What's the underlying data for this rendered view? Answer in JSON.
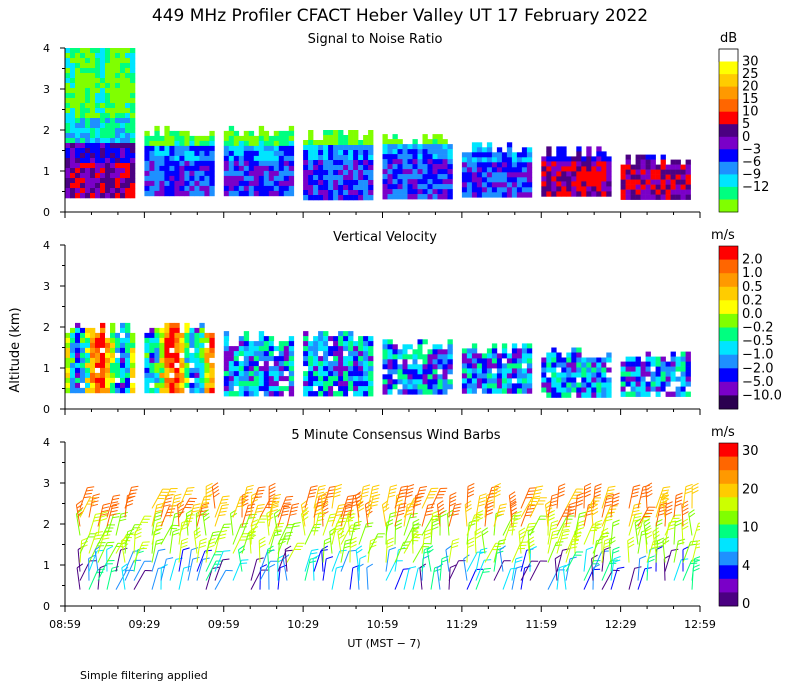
{
  "suptitle": "449 MHz Profiler CFACT Heber Valley UT 17 February 2022",
  "ylabel": "Altitude (km)",
  "xlabel": "UT  (MST − 7)",
  "xticks": [
    "08:59",
    "09:29",
    "09:59",
    "10:29",
    "10:59",
    "11:29",
    "11:59",
    "12:29",
    "12:59"
  ],
  "yticks": [
    "0",
    "1",
    "2",
    "3",
    "4"
  ],
  "footnote": "Simple filtering applied",
  "chart_data": [
    {
      "type": "heatmap",
      "title": "Signal to Noise Ratio",
      "colorbar_unit": "dB",
      "colorbar_labels": [
        "30",
        "25",
        "20",
        "15",
        "10",
        "5",
        "0",
        "−3",
        "−6",
        "−9",
        "−12"
      ],
      "colors": [
        "#ffffff",
        "#ffff00",
        "#ffcc00",
        "#ff9900",
        "#ff6600",
        "#ff0000",
        "#4b0082",
        "#7a00c8",
        "#0000ff",
        "#1e90ff",
        "#00e5ff",
        "#00ff80",
        "#80ff00"
      ],
      "ylim": [
        0,
        4
      ],
      "segments": [
        {
          "start": "08:59",
          "end": "09:24",
          "top_km": 4.0,
          "base_km": 0.4,
          "dominant_dB": [
            5,
            0,
            -3,
            -9,
            -12
          ]
        },
        {
          "start": "09:29",
          "end": "09:54",
          "top_km": 2.1,
          "base_km": 0.4,
          "dominant_dB": [
            0,
            -3,
            -6,
            -9,
            -12
          ]
        },
        {
          "start": "09:59",
          "end": "10:24",
          "top_km": 2.1,
          "base_km": 0.4,
          "dominant_dB": [
            0,
            -3,
            -6,
            -9,
            -12
          ]
        },
        {
          "start": "10:29",
          "end": "10:54",
          "top_km": 2.0,
          "base_km": 0.4,
          "dominant_dB": [
            -3,
            -6,
            -9,
            -12
          ]
        },
        {
          "start": "10:59",
          "end": "11:24",
          "top_km": 1.9,
          "base_km": 0.4,
          "dominant_dB": [
            -6,
            -9,
            -12
          ]
        },
        {
          "start": "11:29",
          "end": "11:54",
          "top_km": 1.7,
          "base_km": 0.4,
          "dominant_dB": [
            0,
            -3,
            -6,
            -9,
            -12
          ]
        },
        {
          "start": "11:59",
          "end": "12:24",
          "top_km": 1.6,
          "base_km": 0.4,
          "dominant_dB": [
            5,
            0,
            -3,
            -9,
            -12
          ]
        },
        {
          "start": "12:29",
          "end": "12:54",
          "top_km": 1.4,
          "base_km": 0.4,
          "dominant_dB": [
            5,
            0,
            -3,
            -9
          ]
        }
      ]
    },
    {
      "type": "heatmap",
      "title": "Vertical Velocity",
      "colorbar_unit": "m/s",
      "colorbar_labels": [
        "2.0",
        "1.0",
        "0.5",
        "0.2",
        "0.0",
        "−0.2",
        "−0.5",
        "−1.0",
        "−2.0",
        "−5.0",
        "−10.0"
      ],
      "colors": [
        "#ff0000",
        "#ff6600",
        "#ff9900",
        "#ffcc00",
        "#ffff00",
        "#80ff00",
        "#00ff80",
        "#00e5ff",
        "#1e90ff",
        "#0000ff",
        "#7a00c8",
        "#2b0050"
      ],
      "ylim": [
        0,
        4
      ],
      "segments": [
        {
          "start": "08:59",
          "end": "09:24",
          "top_km": 2.1,
          "base_km": 0.4
        },
        {
          "start": "09:29",
          "end": "09:54",
          "top_km": 2.1,
          "base_km": 0.4
        },
        {
          "start": "09:59",
          "end": "10:24",
          "top_km": 1.9,
          "base_km": 0.4
        },
        {
          "start": "10:29",
          "end": "10:54",
          "top_km": 1.9,
          "base_km": 0.4
        },
        {
          "start": "10:59",
          "end": "11:24",
          "top_km": 1.7,
          "base_km": 0.4
        },
        {
          "start": "11:29",
          "end": "11:54",
          "top_km": 1.6,
          "base_km": 0.4
        },
        {
          "start": "11:59",
          "end": "12:24",
          "top_km": 1.5,
          "base_km": 0.4
        },
        {
          "start": "12:29",
          "end": "12:54",
          "top_km": 1.4,
          "base_km": 0.4
        }
      ]
    },
    {
      "type": "scatter",
      "title": "5 Minute Consensus Wind Barbs",
      "colorbar_unit": "m/s",
      "colorbar_labels": [
        "30",
        "20",
        "10",
        "4",
        "0"
      ],
      "colors": [
        "#ff0000",
        "#ff6600",
        "#ff9900",
        "#ffcc00",
        "#ccff00",
        "#80ff00",
        "#00ff80",
        "#00e5ff",
        "#1e90ff",
        "#0000ff",
        "#7a00c8",
        "#4b0082"
      ],
      "ylim": [
        0,
        4
      ],
      "barb_height_range_km": [
        0.4,
        2.5
      ],
      "barb_speed_ms": {
        "low_altitude": [
          0,
          10
        ],
        "mid_altitude": [
          10,
          16
        ],
        "upper_altitude": [
          16,
          25
        ]
      }
    }
  ]
}
